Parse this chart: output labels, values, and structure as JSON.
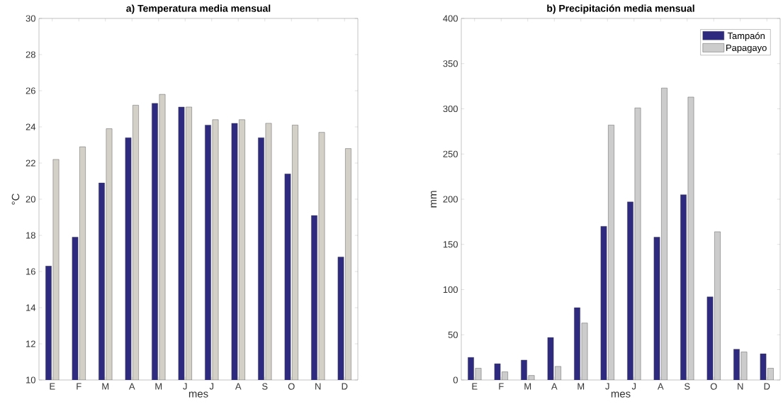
{
  "chart_data": [
    {
      "type": "bar",
      "title": "a) Temperatura media mensual",
      "xlabel": "mes",
      "ylabel": "°C",
      "categories": [
        "E",
        "F",
        "M",
        "A",
        "M",
        "J",
        "J",
        "A",
        "S",
        "O",
        "N",
        "D"
      ],
      "series": [
        {
          "color": "#2e2a80",
          "values": [
            16.3,
            17.9,
            20.9,
            23.4,
            25.3,
            25.1,
            24.1,
            24.2,
            23.4,
            21.4,
            19.1,
            16.8
          ]
        },
        {
          "color": "#d3d0c8",
          "values": [
            22.2,
            22.9,
            23.9,
            25.2,
            25.8,
            25.1,
            24.4,
            24.4,
            24.2,
            24.1,
            23.7,
            22.8
          ]
        }
      ],
      "ylim": [
        10,
        30
      ],
      "yticks": [
        10,
        12,
        14,
        16,
        18,
        20,
        22,
        24,
        26,
        28,
        30
      ],
      "legend": false
    },
    {
      "type": "bar",
      "title": "b) Precipitación media mensual",
      "xlabel": "mes",
      "ylabel": "mm",
      "categories": [
        "E",
        "F",
        "M",
        "A",
        "M",
        "J",
        "J",
        "A",
        "S",
        "O",
        "N",
        "D"
      ],
      "series": [
        {
          "name": "Tampaón",
          "color": "#2e2a80",
          "values": [
            25,
            18,
            22,
            47,
            80,
            170,
            197,
            158,
            205,
            92,
            34,
            29
          ]
        },
        {
          "name": "Papagayo",
          "color": "#cccccc",
          "values": [
            13,
            9,
            5,
            15,
            63,
            282,
            301,
            323,
            313,
            164,
            31,
            13
          ]
        }
      ],
      "ylim": [
        0,
        400
      ],
      "yticks": [
        0,
        50,
        100,
        150,
        200,
        250,
        300,
        350,
        400
      ],
      "legend": "top right"
    }
  ]
}
